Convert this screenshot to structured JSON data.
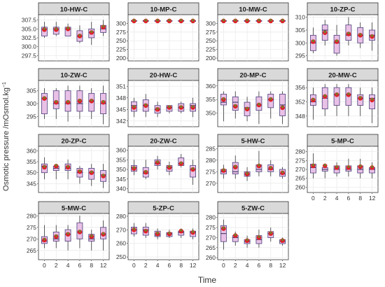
{
  "chart_data": {
    "type": "boxplot",
    "ylabel": "Osmotic pressure /mOsmol.kg",
    "ylabel_sup": "−1",
    "xlabel": "Time",
    "x_ticks": [
      "0",
      "2",
      "4",
      "6",
      "8",
      "12"
    ],
    "colors": {
      "strip_bg": "#d9d9d9",
      "panel_bg": "#ffffff",
      "grid": "#ebebeb",
      "box_fill": "#e9c1e6",
      "box_stroke": "#4a3f7a",
      "median": "#2e2e5a",
      "mean_red": "#e0202a",
      "mean_olive": "#7a7a2a",
      "whisker": "#333333",
      "text": "#333333"
    },
    "panels": [
      {
        "title": "10-HW-C",
        "ylim": [
          296,
          309
        ],
        "yticks": [
          297.5,
          300.0,
          302.5,
          305.0,
          307.5
        ],
        "boxes": [
          [
            302.5,
            303,
            305,
            305.5,
            307
          ],
          [
            303,
            303.5,
            305,
            305.5,
            307
          ],
          [
            303,
            303,
            305,
            305.5,
            306.5
          ],
          [
            301,
            301.5,
            303,
            304.5,
            306
          ],
          [
            300.5,
            302.5,
            304,
            305,
            307
          ],
          [
            303,
            304,
            305,
            306,
            307.5
          ]
        ],
        "means": [
          304.8,
          304.8,
          305,
          303,
          304,
          305.5
        ]
      },
      {
        "title": "10-MP-C",
        "ylim": [
          192,
          325
        ],
        "yticks": [
          200,
          225,
          250,
          275,
          300
        ],
        "boxes": [
          [
            305,
            306,
            307,
            308,
            309
          ],
          [
            305,
            306,
            307,
            308,
            309
          ],
          [
            305,
            306,
            307,
            308,
            309
          ],
          [
            305,
            306,
            307,
            308,
            309
          ],
          [
            305,
            306,
            307,
            308,
            309
          ],
          [
            305,
            306,
            307,
            308,
            309
          ]
        ],
        "means": [
          307,
          307,
          307,
          307,
          307,
          307
        ]
      },
      {
        "title": "10-MW-C",
        "ylim": [
          192,
          325
        ],
        "yticks": [
          200,
          225,
          250,
          275,
          300
        ],
        "boxes": [
          [
            305,
            306,
            307,
            308,
            309
          ],
          [
            305,
            306,
            307,
            308,
            309
          ],
          [
            305,
            306,
            307,
            308,
            309
          ],
          [
            305,
            306,
            307,
            308,
            309
          ],
          [
            305,
            306,
            307,
            308,
            309
          ],
          [
            305,
            306,
            307,
            308,
            309
          ]
        ],
        "means": [
          307,
          307,
          307,
          307,
          307,
          307
        ]
      },
      {
        "title": "10-ZP-C",
        "ylim": [
          293,
          311
        ],
        "yticks": [
          295,
          300,
          305,
          310
        ],
        "boxes": [
          [
            296,
            297,
            300,
            303,
            306
          ],
          [
            299,
            301,
            305,
            307,
            309
          ],
          [
            295,
            296,
            300,
            303,
            307
          ],
          [
            299,
            301,
            303,
            307,
            310
          ],
          [
            298,
            300,
            303,
            306,
            308
          ],
          [
            297,
            301,
            303,
            305,
            308
          ]
        ],
        "means": [
          300.5,
          304,
          300.5,
          303.5,
          303,
          302.5
        ]
      },
      {
        "title": "10-ZW-C",
        "ylim": [
          291,
          309
        ],
        "yticks": [
          295,
          300,
          305
        ],
        "boxes": [
          [
            294,
            296,
            302,
            304,
            306
          ],
          [
            294,
            298,
            300,
            305,
            306
          ],
          [
            293,
            297,
            300,
            305,
            307
          ],
          [
            294,
            297,
            300,
            305,
            307
          ],
          [
            294,
            297,
            301,
            304,
            306
          ],
          [
            292,
            296,
            300,
            304,
            307
          ]
        ],
        "means": [
          302,
          300.5,
          300.5,
          301,
          301,
          300.5
        ]
      },
      {
        "title": "20-HW-C",
        "ylim": [
          340.5,
          352.5
        ],
        "yticks": [
          342,
          345,
          348,
          351
        ],
        "boxes": [
          [
            343,
            344.5,
            346,
            347,
            348
          ],
          [
            343,
            344.5,
            346,
            347.5,
            349
          ],
          [
            343,
            344,
            345,
            346,
            347
          ],
          [
            344,
            344.5,
            345.5,
            346,
            346
          ],
          [
            344,
            344.5,
            345.5,
            346.5,
            347
          ],
          [
            343,
            344.5,
            346,
            346.5,
            348
          ]
        ],
        "means": [
          345.5,
          346,
          345,
          345.5,
          345.5,
          345.5
        ]
      },
      {
        "title": "20-MP-C",
        "ylim": [
          345,
          362
        ],
        "yticks": [
          350,
          355,
          360
        ],
        "boxes": [
          [
            347,
            353,
            354,
            357,
            358
          ],
          [
            348,
            351,
            354,
            356,
            358
          ],
          [
            347,
            349,
            352,
            354,
            356
          ],
          [
            346,
            351,
            353,
            356,
            358
          ],
          [
            348,
            352,
            355,
            357,
            358
          ],
          [
            346,
            349,
            353,
            357,
            358
          ]
        ],
        "means": [
          355,
          352.5,
          351.5,
          353,
          355,
          352
        ]
      },
      {
        "title": "20-MW-C",
        "ylim": [
          345,
          358
        ],
        "yticks": [
          348,
          352,
          356
        ],
        "boxes": [
          [
            347,
            351,
            352,
            354,
            356
          ],
          [
            348,
            350,
            353,
            356,
            357
          ],
          [
            348,
            351,
            354,
            356,
            357
          ],
          [
            348,
            351,
            354,
            356,
            357
          ],
          [
            348,
            351,
            353,
            354,
            356
          ],
          [
            346,
            350,
            353,
            354,
            356
          ]
        ],
        "means": [
          352.5,
          353.5,
          354,
          354,
          353,
          352.5
        ]
      },
      {
        "title": "20-ZP-C",
        "ylim": [
          341,
          362
        ],
        "yticks": [
          345,
          350,
          355,
          360
        ],
        "boxes": [
          [
            347,
            350,
            353,
            354,
            357
          ],
          [
            347,
            351,
            352,
            353,
            354
          ],
          [
            347,
            351,
            352,
            354,
            356
          ],
          [
            345,
            348,
            350,
            352,
            353
          ],
          [
            344,
            347,
            350,
            352,
            354
          ],
          [
            343,
            346,
            349,
            351,
            354
          ]
        ],
        "means": [
          352.5,
          353,
          352.5,
          350.5,
          350,
          348.5
        ]
      },
      {
        "title": "20-ZW-C",
        "ylim": [
          338,
          362
        ],
        "yticks": [
          340,
          345,
          350,
          355,
          360
        ],
        "boxes": [
          [
            347,
            349,
            351,
            352,
            355
          ],
          [
            345,
            346,
            348,
            351,
            355
          ],
          [
            350,
            352,
            353,
            355,
            357
          ],
          [
            347,
            349,
            351,
            352,
            354
          ],
          [
            351,
            352,
            353,
            356,
            358
          ],
          [
            342,
            346,
            350,
            352,
            355
          ]
        ],
        "means": [
          350.5,
          348.5,
          353.5,
          351,
          353,
          350
        ]
      },
      {
        "title": "5-HW-C",
        "ylim": [
          266,
          286
        ],
        "yticks": [
          270,
          275,
          280,
          285
        ],
        "boxes": [
          [
            272,
            274,
            275,
            276,
            278
          ],
          [
            272,
            274,
            275,
            279,
            282
          ],
          [
            271,
            273,
            274,
            275,
            277
          ],
          [
            273,
            275,
            276,
            278,
            284
          ],
          [
            273,
            275,
            276,
            278,
            280
          ],
          [
            272,
            273,
            274,
            276,
            277
          ]
        ],
        "means": [
          275.5,
          277,
          274,
          277.5,
          276.5,
          274.5
        ]
      },
      {
        "title": "5-MP-C",
        "ylim": [
          257,
          283
        ],
        "yticks": [
          260,
          265,
          270,
          275,
          280
        ],
        "boxes": [
          [
            265,
            268,
            271,
            273,
            279
          ],
          [
            265,
            269,
            270,
            271,
            273
          ],
          [
            266,
            268,
            270,
            272,
            274
          ],
          [
            266,
            269,
            270,
            272,
            276
          ],
          [
            265,
            268,
            270,
            272,
            276
          ],
          [
            265,
            268,
            270,
            271,
            274
          ]
        ],
        "means": [
          272,
          272,
          271,
          271,
          271.5,
          271
        ]
      },
      {
        "title": "5-MW-C",
        "ylim": [
          261,
          281
        ],
        "yticks": [
          265,
          270,
          275,
          280
        ],
        "boxes": [
          [
            266,
            268,
            269,
            271,
            276
          ],
          [
            266,
            269,
            270,
            273,
            276
          ],
          [
            265,
            269,
            272,
            274,
            276
          ],
          [
            266,
            270,
            273,
            277,
            280
          ],
          [
            265,
            269,
            270,
            272,
            274
          ],
          [
            265,
            270,
            272,
            275,
            278
          ]
        ],
        "means": [
          269.5,
          271,
          272,
          273,
          271,
          272
        ]
      },
      {
        "title": "5-ZP-C",
        "ylim": [
          248,
          282
        ],
        "yticks": [
          250,
          260,
          270,
          280
        ],
        "boxes": [
          [
            265,
            267,
            270,
            272,
            275
          ],
          [
            264,
            266,
            270,
            272,
            275
          ],
          [
            263,
            265,
            266,
            269,
            271
          ],
          [
            264,
            265,
            267,
            268,
            270
          ],
          [
            264,
            266,
            268,
            269,
            271
          ],
          [
            263,
            265,
            268,
            269,
            271
          ]
        ],
        "means": [
          270,
          269,
          267,
          267,
          269,
          268
        ]
      },
      {
        "title": "5-ZW-C",
        "ylim": [
          259,
          282
        ],
        "yticks": [
          260,
          265,
          270,
          275,
          280
        ],
        "boxes": [
          [
            264,
            268,
            272,
            276,
            279
          ],
          [
            266,
            268,
            270,
            271,
            273
          ],
          [
            265,
            267,
            268,
            269,
            271
          ],
          [
            265,
            267,
            269,
            271,
            274
          ],
          [
            268,
            270,
            272,
            273,
            275
          ],
          [
            266,
            267,
            268,
            269,
            270
          ]
        ],
        "means": [
          274.5,
          271,
          268.5,
          270,
          272,
          268.5
        ]
      }
    ]
  }
}
